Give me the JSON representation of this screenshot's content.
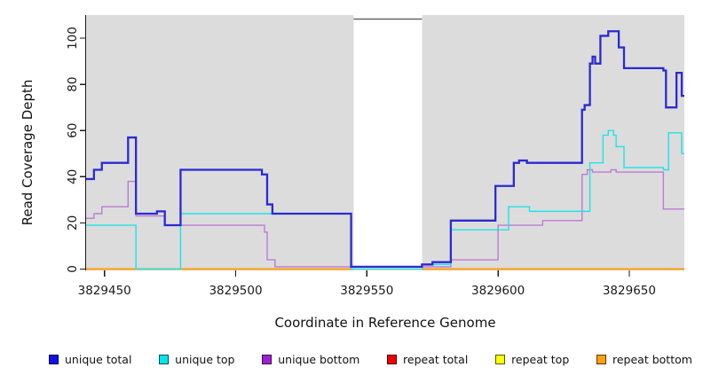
{
  "figure": {
    "xlabel": "Coordinate in Reference Genome",
    "ylabel": "Read Coverage Depth"
  },
  "chart_data": {
    "type": "line",
    "line_style": "step",
    "title": "",
    "xlabel": "Coordinate in Reference Genome",
    "ylabel": "Read Coverage Depth",
    "xlim": [
      3829443,
      3829671
    ],
    "ylim": [
      0,
      110
    ],
    "x_ticks": [
      3829450,
      3829500,
      3829550,
      3829600,
      3829650
    ],
    "y_ticks": [
      0,
      20,
      40,
      60,
      80,
      100
    ],
    "grid": false,
    "plot_bg": "#dcdcdc",
    "axis_color": "#1a1a1a",
    "gap_region": {
      "start": 3829545,
      "end": 3829571,
      "color": "#ffffff",
      "border_color": "#666666"
    },
    "legend_position": "bottom",
    "series": [
      {
        "name": "unique total",
        "color": "#2a2ad2",
        "legend_color": "#1010e6",
        "line_width": 2.3,
        "points": [
          [
            3829443,
            39
          ],
          [
            3829446,
            43
          ],
          [
            3829449,
            46
          ],
          [
            3829459,
            57
          ],
          [
            3829462,
            24
          ],
          [
            3829470,
            25
          ],
          [
            3829473,
            19
          ],
          [
            3829479,
            43
          ],
          [
            3829510,
            41
          ],
          [
            3829512,
            28
          ],
          [
            3829514,
            24
          ],
          [
            3829544,
            1
          ],
          [
            3829571,
            2
          ],
          [
            3829575,
            3
          ],
          [
            3829582,
            21
          ],
          [
            3829599,
            36
          ],
          [
            3829606,
            46
          ],
          [
            3829608,
            47
          ],
          [
            3829611,
            46
          ],
          [
            3829632,
            69
          ],
          [
            3829633,
            71
          ],
          [
            3829635,
            89
          ],
          [
            3829636,
            92
          ],
          [
            3829637,
            89
          ],
          [
            3829639,
            101
          ],
          [
            3829642,
            103
          ],
          [
            3829646,
            96
          ],
          [
            3829648,
            87
          ],
          [
            3829663,
            86
          ],
          [
            3829664,
            70
          ],
          [
            3829668,
            85
          ],
          [
            3829670,
            75
          ]
        ]
      },
      {
        "name": "unique top",
        "color": "#1ee3ea",
        "legend_color": "#00e5ee",
        "line_width": 1.4,
        "points": [
          [
            3829443,
            19
          ],
          [
            3829462,
            0
          ],
          [
            3829479,
            24
          ],
          [
            3829544,
            0
          ],
          [
            3829571,
            2
          ],
          [
            3829582,
            17
          ],
          [
            3829604,
            27
          ],
          [
            3829612,
            25
          ],
          [
            3829635,
            46
          ],
          [
            3829640,
            58
          ],
          [
            3829642,
            60
          ],
          [
            3829644,
            58
          ],
          [
            3829645,
            53
          ],
          [
            3829648,
            44
          ],
          [
            3829663,
            43
          ],
          [
            3829665,
            59
          ],
          [
            3829670,
            50
          ]
        ]
      },
      {
        "name": "unique bottom",
        "color": "#bb7bd8",
        "legend_color": "#a020d0",
        "line_width": 1.4,
        "points": [
          [
            3829443,
            22
          ],
          [
            3829446,
            24
          ],
          [
            3829449,
            27
          ],
          [
            3829459,
            38
          ],
          [
            3829462,
            23
          ],
          [
            3829473,
            19
          ],
          [
            3829511,
            16
          ],
          [
            3829512,
            4
          ],
          [
            3829515,
            1
          ],
          [
            3829544,
            0
          ],
          [
            3829571,
            1
          ],
          [
            3829582,
            4
          ],
          [
            3829600,
            19
          ],
          [
            3829617,
            21
          ],
          [
            3829632,
            41
          ],
          [
            3829634,
            43
          ],
          [
            3829636,
            42
          ],
          [
            3829643,
            43
          ],
          [
            3829645,
            42
          ],
          [
            3829663,
            26
          ]
        ]
      },
      {
        "name": "repeat total",
        "color": "#dd0000",
        "legend_color": "#ee0000",
        "line_width": 1.4,
        "points": [
          [
            3829443,
            0
          ]
        ]
      },
      {
        "name": "repeat top",
        "color": "#ffff00",
        "legend_color": "#ffff00",
        "line_width": 1.4,
        "points": [
          [
            3829443,
            0
          ]
        ]
      },
      {
        "name": "repeat bottom",
        "color": "#ff9d0a",
        "legend_color": "#ffa010",
        "line_width": 1.9,
        "points": [
          [
            3829443,
            0
          ]
        ]
      }
    ]
  }
}
